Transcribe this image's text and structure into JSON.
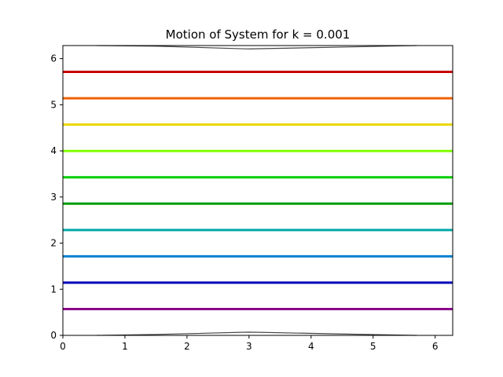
{
  "chart_data": {
    "type": "line",
    "title": "Motion of System for k = 0.001",
    "xlabel": "",
    "ylabel": "",
    "xlim": [
      0,
      6.283
    ],
    "ylim": [
      0,
      6.283
    ],
    "xticks": [
      "0",
      "1",
      "2",
      "3",
      "4",
      "5",
      "6"
    ],
    "yticks": [
      "0",
      "1",
      "2",
      "3",
      "4",
      "5",
      "6"
    ],
    "grid": false,
    "legend": "none",
    "series": [
      {
        "color": "#8b008b",
        "x": [
          0,
          6.283
        ],
        "y": [
          0.571,
          0.571
        ]
      },
      {
        "color": "#0000b8",
        "x": [
          0,
          6.283
        ],
        "y": [
          1.142,
          1.142
        ]
      },
      {
        "color": "#0080d0",
        "x": [
          0,
          6.283
        ],
        "y": [
          1.713,
          1.713
        ]
      },
      {
        "color": "#00a8a8",
        "x": [
          0,
          6.283
        ],
        "y": [
          2.284,
          2.284
        ]
      },
      {
        "color": "#009c00",
        "x": [
          0,
          6.283
        ],
        "y": [
          2.856,
          2.856
        ]
      },
      {
        "color": "#00cc00",
        "x": [
          0,
          6.283
        ],
        "y": [
          3.427,
          3.427
        ]
      },
      {
        "color": "#80ff00",
        "x": [
          0,
          6.283
        ],
        "y": [
          3.998,
          3.998
        ]
      },
      {
        "color": "#e8d800",
        "x": [
          0,
          6.283
        ],
        "y": [
          4.569,
          4.569
        ]
      },
      {
        "color": "#f06000",
        "x": [
          0,
          6.283
        ],
        "y": [
          5.14,
          5.14
        ]
      },
      {
        "color": "#c80000",
        "x": [
          0,
          6.283
        ],
        "y": [
          5.712,
          5.712
        ]
      },
      {
        "color": "#444444",
        "x": [
          0.55,
          1.5,
          3.0,
          4.5,
          5.7
        ],
        "y": [
          0.0,
          0.02,
          0.07,
          0.03,
          0.0
        ]
      },
      {
        "color": "#444444",
        "x": [
          0.55,
          1.5,
          3.0,
          4.5,
          5.7
        ],
        "y": [
          6.283,
          6.27,
          6.21,
          6.25,
          6.283
        ]
      }
    ]
  }
}
